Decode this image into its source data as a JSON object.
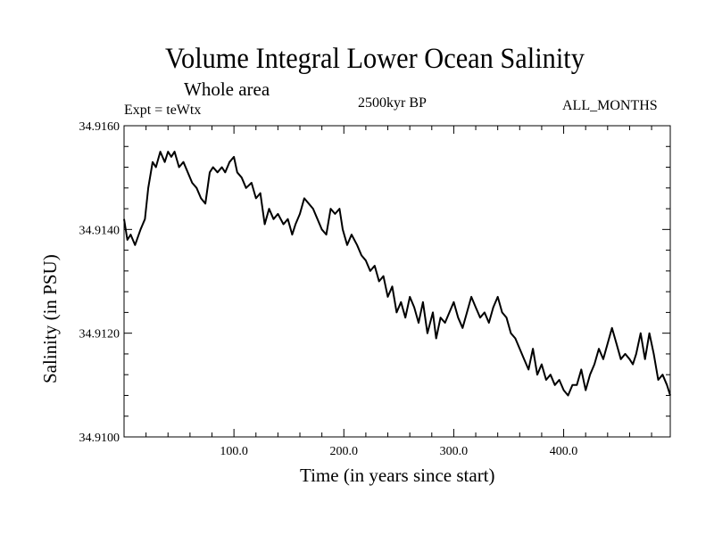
{
  "chart_data": {
    "type": "line",
    "title": "Volume Integral Lower Ocean Salinity",
    "subtitle": "Whole area",
    "experiment": "Expt = teWtx",
    "period": "2500kyr BP",
    "months": "ALL_MONTHS",
    "xlabel": "Time (in years since start)",
    "ylabel": "Salinity (in PSU)",
    "xlim": [
      0,
      497
    ],
    "ylim": [
      34.91,
      34.916
    ],
    "grid": false,
    "x_ticks": [
      100,
      200,
      300,
      400
    ],
    "x_tick_labels": [
      "100.0",
      "200.0",
      "300.0",
      "400.0"
    ],
    "y_ticks": [
      34.91,
      34.912,
      34.914,
      34.916
    ],
    "y_tick_labels": [
      "34.9100",
      "34.9120",
      "34.9140",
      "34.9160"
    ],
    "series": [
      {
        "name": "Salinity",
        "color": "#000000",
        "x": [
          0,
          3,
          6,
          10,
          15,
          19,
          22,
          26,
          29,
          33,
          37,
          40,
          43,
          46,
          50,
          54,
          58,
          62,
          66,
          70,
          74,
          78,
          81,
          85,
          89,
          92,
          96,
          100,
          103,
          107,
          111,
          116,
          120,
          124,
          128,
          132,
          136,
          140,
          145,
          149,
          153,
          156,
          160,
          164,
          168,
          172,
          176,
          180,
          184,
          188,
          192,
          196,
          199,
          203,
          207,
          212,
          216,
          220,
          224,
          228,
          232,
          236,
          240,
          244,
          248,
          252,
          256,
          260,
          264,
          268,
          272,
          276,
          281,
          284,
          288,
          292,
          296,
          300,
          304,
          308,
          312,
          316,
          320,
          324,
          328,
          332,
          336,
          340,
          344,
          348,
          352,
          356,
          360,
          364,
          368,
          372,
          376,
          380,
          384,
          388,
          392,
          396,
          400,
          404,
          408,
          412,
          416,
          420,
          424,
          428,
          432,
          436,
          440,
          444,
          448,
          452,
          456,
          460,
          463,
          466,
          470,
          474,
          478,
          482,
          486,
          490,
          494,
          497
        ],
        "y": [
          34.9142,
          34.9138,
          34.9139,
          34.9137,
          34.914,
          34.9142,
          34.9148,
          34.9153,
          34.9152,
          34.9155,
          34.9153,
          34.9155,
          34.9154,
          34.9155,
          34.9152,
          34.9153,
          34.9151,
          34.9149,
          34.9148,
          34.9146,
          34.9145,
          34.9151,
          34.9152,
          34.9151,
          34.9152,
          34.9151,
          34.9153,
          34.9154,
          34.9151,
          34.915,
          34.9148,
          34.9149,
          34.9146,
          34.9147,
          34.9141,
          34.9144,
          34.9142,
          34.9143,
          34.9141,
          34.9142,
          34.9139,
          34.9141,
          34.9143,
          34.9146,
          34.9145,
          34.9144,
          34.9142,
          34.914,
          34.9139,
          34.9144,
          34.9143,
          34.9144,
          34.914,
          34.9137,
          34.9139,
          34.9137,
          34.9135,
          34.9134,
          34.9132,
          34.9133,
          34.913,
          34.9131,
          34.9127,
          34.9129,
          34.9124,
          34.9126,
          34.9123,
          34.9127,
          34.9125,
          34.9122,
          34.9126,
          34.912,
          34.9124,
          34.9119,
          34.9123,
          34.9122,
          34.9124,
          34.9126,
          34.9123,
          34.9121,
          34.9124,
          34.9127,
          34.9125,
          34.9123,
          34.9124,
          34.9122,
          34.9125,
          34.9127,
          34.9124,
          34.9123,
          34.912,
          34.9119,
          34.9117,
          34.9115,
          34.9113,
          34.9117,
          34.9112,
          34.9114,
          34.9111,
          34.9112,
          34.911,
          34.9111,
          34.9109,
          34.9108,
          34.911,
          34.911,
          34.9113,
          34.9109,
          34.9112,
          34.9114,
          34.9117,
          34.9115,
          34.9118,
          34.9121,
          34.9118,
          34.9115,
          34.9116,
          34.9115,
          34.9114,
          34.9116,
          34.912,
          34.9115,
          34.912,
          34.9116,
          34.9111,
          34.9112,
          34.911,
          34.9108
        ]
      }
    ]
  }
}
